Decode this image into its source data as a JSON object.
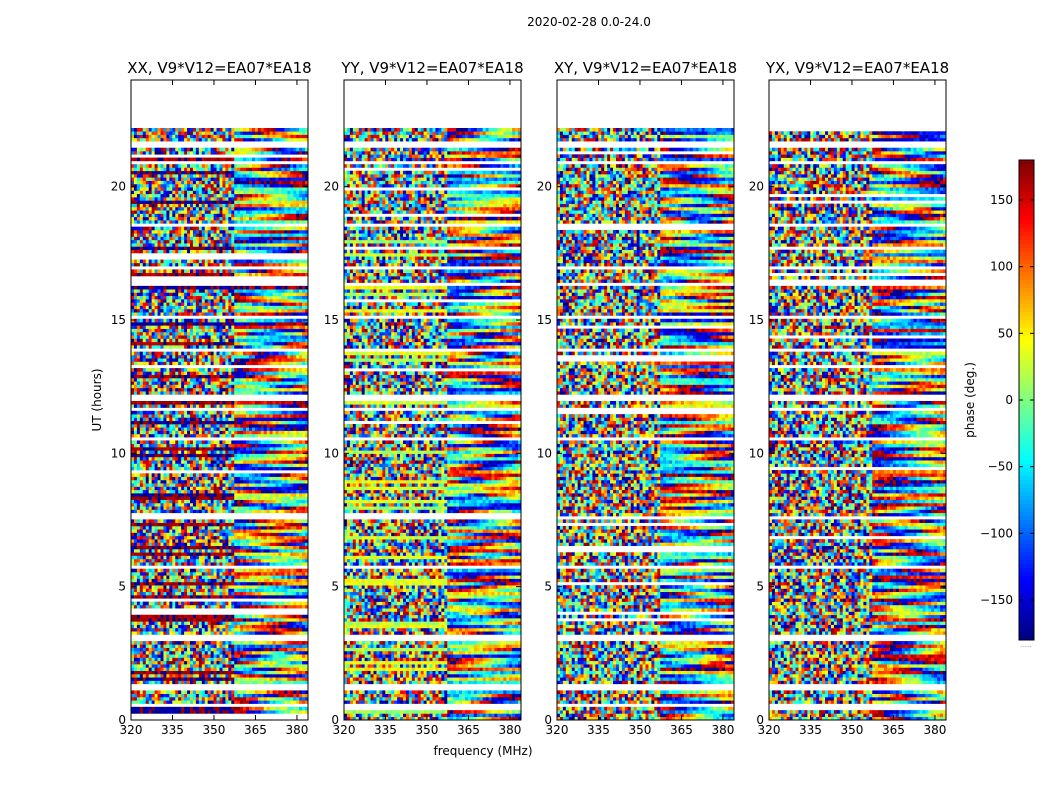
{
  "chart_data": {
    "type": "heatmap",
    "suptitle": "2020-02-28 0.0-24.0",
    "xlabel": "frequency (MHz)",
    "ylabel": "UT (hours)",
    "colorbar_label": "phase (deg.)",
    "colormap": "jet",
    "clim": [
      -180,
      180
    ],
    "colorbar_ticks": [
      -150,
      -100,
      -50,
      0,
      50,
      100,
      150
    ],
    "colorbar_extra_label": "......",
    "xlim": [
      320,
      384
    ],
    "ylim": [
      0,
      24
    ],
    "x_ticks": [
      320,
      335,
      350,
      365,
      380
    ],
    "y_ticks": [
      0,
      5,
      10,
      15,
      20
    ],
    "data_ut_range": [
      0,
      22.2
    ],
    "freq_boundary_mhz": 357,
    "panels": [
      {
        "name": "XX",
        "title": "XX, V9*V12=EA07*EA18",
        "phase_character": "dark blue and dark red strips on low frequency side, fringes above 357 MHz"
      },
      {
        "name": "YY",
        "title": "YY, V9*V12=EA07*EA18",
        "phase_character": "yellow-green strips, fringes above 357 MHz"
      },
      {
        "name": "XY",
        "title": "XY, V9*V12=EA07*EA18",
        "phase_character": "random phase noise"
      },
      {
        "name": "YX",
        "title": "YX, V9*V12=EA07*EA18",
        "phase_character": "random phase noise"
      }
    ],
    "flagged_ut_hours": [
      0.55,
      1.25,
      3.1,
      5.75,
      7.6,
      10.55,
      11.65,
      12.1,
      13.9,
      15.1,
      16.3,
      16.95,
      18.6,
      20.9,
      21.6
    ]
  }
}
